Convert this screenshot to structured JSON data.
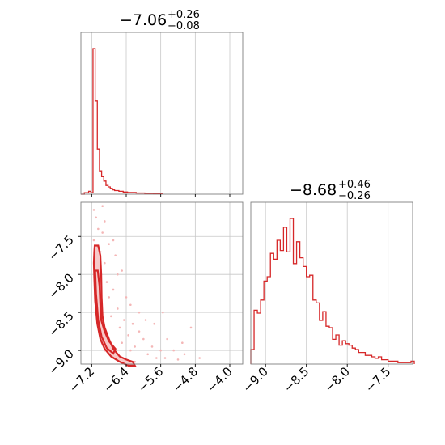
{
  "chart_data": [
    {
      "type": "histogram",
      "panel": "top-left",
      "title": {
        "median": "−7.06",
        "upper": "+0.26",
        "lower": "−0.08"
      },
      "xlim": [
        -7.45,
        -3.7
      ],
      "xticks": [
        -7.2,
        -6.4,
        -5.6,
        -4.8,
        -4.0
      ],
      "grid": true,
      "bin_edges": [
        -7.45,
        -7.37,
        -7.32,
        -7.27,
        -7.22,
        -7.17,
        -7.12,
        -7.07,
        -7.02,
        -6.97,
        -6.92,
        -6.87,
        -6.82,
        -6.77,
        -6.72,
        -6.67,
        -6.57,
        -6.47,
        -6.37,
        -6.17,
        -5.97,
        -5.77,
        -5.57
      ],
      "counts": [
        0.0,
        0.01,
        0.01,
        0.02,
        0.01,
        1.0,
        0.64,
        0.31,
        0.16,
        0.12,
        0.09,
        0.06,
        0.05,
        0.04,
        0.03,
        0.025,
        0.02,
        0.015,
        0.012,
        0.008,
        0.006,
        0.003
      ]
    },
    {
      "type": "scatter",
      "panel": "bottom-left",
      "xlim": [
        -7.45,
        -3.7
      ],
      "ylim": [
        -9.18,
        -7.05
      ],
      "xticks": [
        -7.2,
        -6.4,
        -5.6,
        -4.8,
        -4.0
      ],
      "xtick_labels": [
        "−7.2",
        "−6.4",
        "−5.6",
        "−4.8",
        "−4.0"
      ],
      "yticks": [
        -7.5,
        -8.0,
        -8.5,
        -9.0
      ],
      "ytick_labels": [
        "−7.5",
        "−8.0",
        "−8.5",
        "−9.0"
      ],
      "grid": true,
      "points": [
        [
          -7.1,
          -7.25
        ],
        [
          -7.05,
          -7.4
        ],
        [
          -7.15,
          -7.55
        ],
        [
          -7.0,
          -7.7
        ],
        [
          -6.95,
          -7.45
        ],
        [
          -7.12,
          -7.9
        ],
        [
          -6.9,
          -7.85
        ],
        [
          -6.85,
          -8.1
        ],
        [
          -6.8,
          -8.3
        ],
        [
          -6.7,
          -8.2
        ],
        [
          -6.75,
          -8.55
        ],
        [
          -6.6,
          -8.45
        ],
        [
          -6.55,
          -8.7
        ],
        [
          -6.5,
          -8.9
        ],
        [
          -6.45,
          -8.6
        ],
        [
          -6.35,
          -8.8
        ],
        [
          -6.3,
          -9.0
        ],
        [
          -6.2,
          -8.95
        ],
        [
          -6.1,
          -8.75
        ],
        [
          -6.0,
          -8.85
        ],
        [
          -5.9,
          -9.05
        ],
        [
          -5.8,
          -8.95
        ],
        [
          -5.7,
          -9.1
        ],
        [
          -5.6,
          -9.0
        ],
        [
          -5.5,
          -9.1
        ],
        [
          -5.3,
          -9.0
        ],
        [
          -5.1,
          -8.9
        ],
        [
          -4.9,
          -8.7
        ],
        [
          -5.2,
          -9.12
        ],
        [
          -6.3,
          -8.4
        ],
        [
          -6.6,
          -8.0
        ],
        [
          -6.5,
          -7.95
        ],
        [
          -6.4,
          -8.3
        ],
        [
          -6.1,
          -8.5
        ],
        [
          -5.75,
          -8.65
        ],
        [
          -5.55,
          -8.5
        ],
        [
          -6.9,
          -7.3
        ],
        [
          -6.8,
          -7.6
        ],
        [
          -6.65,
          -7.75
        ],
        [
          -6.7,
          -7.55
        ],
        [
          -7.05,
          -8.6
        ],
        [
          -7.0,
          -8.8
        ],
        [
          -6.9,
          -9.0
        ],
        [
          -6.75,
          -9.05
        ],
        [
          -6.6,
          -9.1
        ],
        [
          -6.4,
          -9.12
        ],
        [
          -6.2,
          -9.15
        ],
        [
          -7.15,
          -7.15
        ],
        [
          -6.95,
          -7.1
        ],
        [
          -6.25,
          -8.65
        ],
        [
          -5.95,
          -8.6
        ],
        [
          -5.45,
          -8.85
        ],
        [
          -5.05,
          -9.05
        ],
        [
          -4.7,
          -9.1
        ]
      ],
      "contours": [
        {
          "level": "outer",
          "x": [
            -7.13,
            -7.05,
            -7.0,
            -6.98,
            -6.97,
            -6.95,
            -6.9,
            -6.8,
            -6.7,
            -6.55,
            -6.4,
            -6.25,
            -6.2,
            -6.35,
            -6.55,
            -6.75,
            -6.9,
            -7.0,
            -7.07,
            -7.12,
            -7.14,
            -7.15,
            -7.14,
            -7.13
          ],
          "y": [
            -7.62,
            -7.62,
            -7.75,
            -8.0,
            -8.3,
            -8.55,
            -8.7,
            -8.85,
            -8.98,
            -9.08,
            -9.12,
            -9.15,
            -9.2,
            -9.2,
            -9.15,
            -9.08,
            -8.98,
            -8.85,
            -8.65,
            -8.35,
            -8.05,
            -7.85,
            -7.7,
            -7.62
          ]
        },
        {
          "level": "inner",
          "x": [
            -7.12,
            -7.06,
            -7.02,
            -7.0,
            -6.98,
            -6.9,
            -6.8,
            -6.65,
            -6.7,
            -6.85,
            -6.97,
            -7.05,
            -7.1,
            -7.12
          ],
          "y": [
            -7.95,
            -7.95,
            -8.15,
            -8.4,
            -8.6,
            -8.75,
            -8.88,
            -8.98,
            -9.04,
            -8.97,
            -8.82,
            -8.6,
            -8.25,
            -7.95
          ]
        }
      ]
    },
    {
      "type": "histogram",
      "panel": "bottom-right",
      "title": {
        "median": "−8.68",
        "upper": "+0.46",
        "lower": "−0.26"
      },
      "xlim": [
        -9.18,
        -7.2
      ],
      "xticks": [
        -9.0,
        -8.5,
        -8.0,
        -7.5
      ],
      "xtick_labels": [
        "−9.0",
        "−8.5",
        "−8.0",
        "−7.5"
      ],
      "grid": true,
      "bin_edges": [
        -9.18,
        -9.14,
        -9.1,
        -9.06,
        -9.02,
        -8.98,
        -8.94,
        -8.9,
        -8.86,
        -8.82,
        -8.78,
        -8.74,
        -8.7,
        -8.66,
        -8.62,
        -8.58,
        -8.54,
        -8.5,
        -8.46,
        -8.42,
        -8.38,
        -8.34,
        -8.3,
        -8.26,
        -8.22,
        -8.18,
        -8.14,
        -8.1,
        -8.06,
        -8.02,
        -7.98,
        -7.94,
        -7.9,
        -7.86,
        -7.82,
        -7.78,
        -7.74,
        -7.7,
        -7.66,
        -7.62,
        -7.58,
        -7.54,
        -7.5,
        -7.46,
        -7.42,
        -7.38,
        -7.34,
        -7.3,
        -7.26,
        -7.22,
        -7.18
      ],
      "counts": [
        0.1,
        0.37,
        0.35,
        0.44,
        0.57,
        0.6,
        0.76,
        0.72,
        0.85,
        0.78,
        0.94,
        0.77,
        1.0,
        0.69,
        0.84,
        0.73,
        0.67,
        0.6,
        0.61,
        0.44,
        0.42,
        0.3,
        0.36,
        0.26,
        0.25,
        0.17,
        0.2,
        0.13,
        0.16,
        0.14,
        0.13,
        0.11,
        0.1,
        0.08,
        0.08,
        0.06,
        0.06,
        0.05,
        0.04,
        0.05,
        0.03,
        0.03,
        0.02,
        0.02,
        0.02,
        0.01,
        0.01,
        0.01,
        0.01,
        0.02
      ]
    }
  ]
}
